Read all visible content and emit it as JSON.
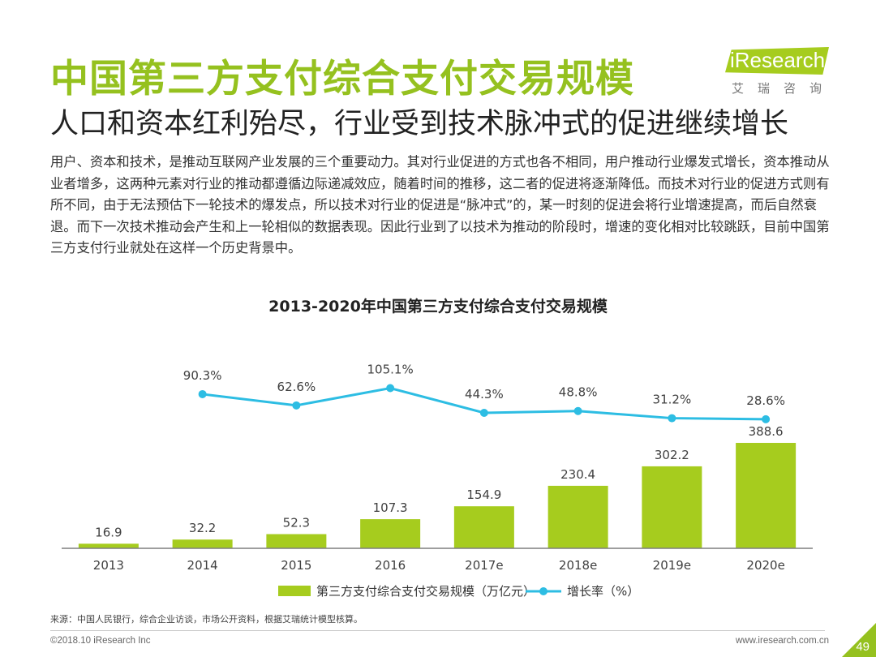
{
  "title": "中国第三方支付综合支付交易规模",
  "subtitle": "人口和资本红利殆尽，行业受到技术脉冲式的促进继续增长",
  "logo": {
    "brand": "iResearch",
    "cn": "艾瑞咨询"
  },
  "intro": "用户、资本和技术，是推动互联网产业发展的三个重要动力。其对行业促进的方式也各不相同，用户推动行业爆发式增长，资本推动从业者增多，这两种元素对行业的推动都遵循边际递减效应，随着时间的推移，这二者的促进将逐渐降低。而技术对行业的促进方式则有所不同，由于无法预估下一轮技术的爆发点，所以技术对行业的促进是“脉冲式”的，某一时刻的促进会将行业增速提高，而后自然衰退。而下一次技术推动会产生和上一轮相似的数据表现。因此行业到了以技术为推动的阶段时，增速的变化相对比较跳跃，目前中国第三方支付行业就处在这样一个历史背景中。",
  "chart_data": {
    "type": "bar",
    "title": "2013-2020年中国第三方支付综合支付交易规模",
    "categories": [
      "2013",
      "2014",
      "2015",
      "2016",
      "2017e",
      "2018e",
      "2019e",
      "2020e"
    ],
    "series": [
      {
        "name": "第三方支付综合支付交易规模（万亿元）",
        "type": "bar",
        "color": "#a6cc1e",
        "values": [
          16.9,
          32.2,
          52.3,
          107.3,
          154.9,
          230.4,
          302.2,
          388.6
        ],
        "labels": [
          "16.9",
          "32.2",
          "52.3",
          "107.3",
          "154.9",
          "230.4",
          "302.2",
          "388.6"
        ]
      },
      {
        "name": "增长率（%）",
        "type": "line",
        "color": "#2dbde3",
        "values": [
          null,
          90.3,
          62.6,
          105.1,
          44.3,
          48.8,
          31.2,
          28.6
        ],
        "labels": [
          "",
          "90.3%",
          "62.6%",
          "105.1%",
          "44.3%",
          "48.8%",
          "31.2%",
          "28.6%"
        ]
      }
    ],
    "xlabel": "",
    "ylabel": "",
    "legend": "bottom"
  },
  "source": "来源：中国人民银行，综合企业访谈，市场公开资料，根据艾瑞统计模型核算。",
  "copyright": "©2018.10 iResearch Inc",
  "website": "www.iresearch.com.cn",
  "page_number": "49"
}
